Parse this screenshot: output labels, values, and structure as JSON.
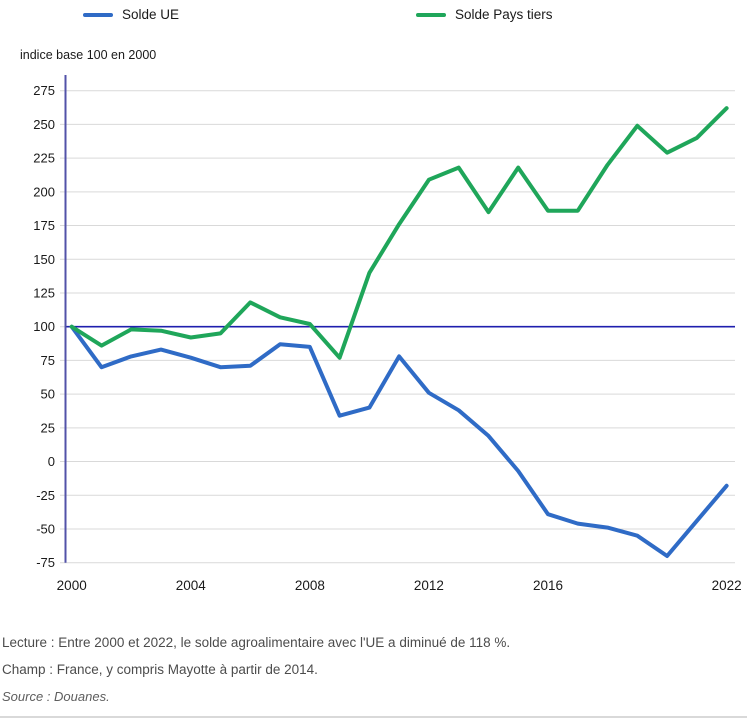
{
  "legend": {
    "items": [
      {
        "label": "Solde UE",
        "color": "#2f6bc6"
      },
      {
        "label": "Solde Pays tiers",
        "color": "#1fa65a"
      }
    ]
  },
  "axis_title": "indice base 100 en 2000",
  "chart_data": {
    "type": "line",
    "title": "",
    "ylabel": "indice base 100 en 2000",
    "xlabel": "",
    "ylim": [
      -75,
      275
    ],
    "grid": true,
    "legend_position": "top",
    "x": [
      2000,
      2001,
      2002,
      2003,
      2004,
      2005,
      2006,
      2007,
      2008,
      2009,
      2010,
      2011,
      2012,
      2013,
      2014,
      2015,
      2016,
      2017,
      2018,
      2019,
      2020,
      2021,
      2022
    ],
    "series": [
      {
        "name": "Solde UE",
        "color": "#2f6bc6",
        "values": [
          100,
          70,
          78,
          83,
          77,
          70,
          71,
          87,
          85,
          34,
          40,
          78,
          51,
          38,
          19,
          -7,
          -39,
          -46,
          -49,
          -55,
          -70,
          -44,
          -18
        ]
      },
      {
        "name": "Solde Pays tiers",
        "color": "#1fa65a",
        "values": [
          100,
          86,
          98,
          97,
          92,
          95,
          118,
          107,
          102,
          77,
          140,
          176,
          209,
          218,
          185,
          218,
          186,
          186,
          220,
          249,
          229,
          240,
          262
        ]
      }
    ],
    "y_ticks": [
      275,
      250,
      225,
      200,
      175,
      150,
      125,
      100,
      75,
      50,
      25,
      0,
      -25,
      -50,
      -75
    ],
    "x_tick_labels": [
      2000,
      2004,
      2008,
      2012,
      2016,
      2022
    ],
    "baseline": {
      "value": 100,
      "color": "#1f1fae"
    },
    "axis_color": "#5252a8",
    "grid_color": "#d9d9d9"
  },
  "footer": {
    "lecture": "Lecture : Entre 2000 et 2022, le solde agroalimentaire avec l'UE a diminué de 118 %.",
    "champ": "Champ : France, y compris Mayotte à partir de 2014.",
    "source": "Source : Douanes."
  }
}
